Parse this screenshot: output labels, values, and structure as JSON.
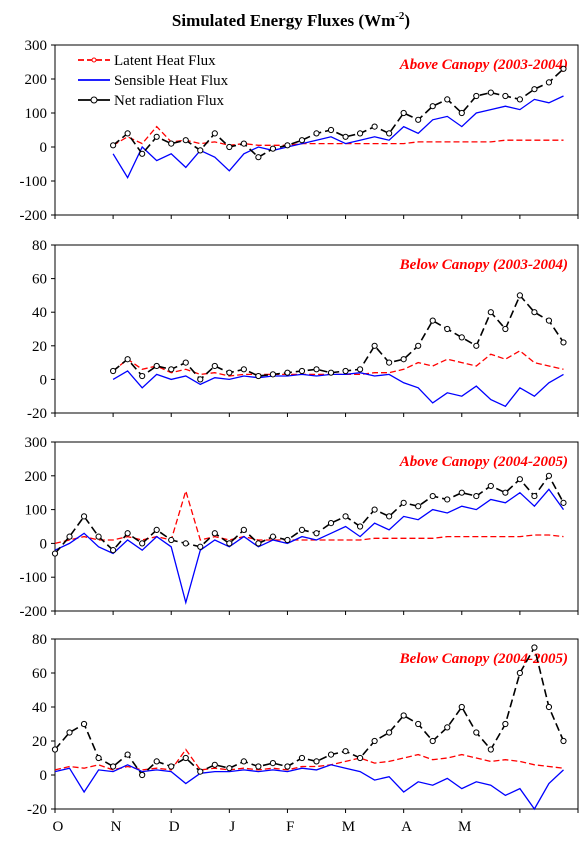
{
  "chart_data": {
    "title": "Simulated Energy Fluxes (Wm",
    "title_sup": "-2",
    "title_close": ")",
    "type": "line",
    "x_tick_labels": [
      "O",
      "N",
      "D",
      "J",
      "F",
      "M",
      "A",
      "M"
    ],
    "legend": {
      "placement": "top-left of first panel",
      "entries": [
        "Latent Heat Flux",
        "Sensible Heat Flux",
        "Net radiation Flux"
      ]
    },
    "series_colors": {
      "latent": "#ff0000",
      "sensible": "#0000ff",
      "net": "#000000"
    },
    "panels": [
      {
        "label": "Above Canopy (2003-2004)",
        "ylim": [
          -200,
          300
        ],
        "yticks": [
          -200,
          -100,
          0,
          100,
          200,
          300
        ],
        "series": [
          {
            "name": "Latent Heat Flux",
            "x": [
              1.0,
              1.25,
              1.5,
              1.75,
              2.0,
              2.25,
              2.5,
              2.75,
              3.0,
              3.25,
              3.5,
              3.75,
              4.0,
              4.25,
              4.5,
              4.75,
              5.0,
              5.25,
              5.5,
              5.75,
              6.0,
              6.25,
              6.5,
              6.75,
              7.0,
              7.25,
              7.5,
              7.75,
              8.0,
              8.25,
              8.5,
              8.75
            ],
            "y": [
              5,
              30,
              10,
              60,
              15,
              20,
              10,
              15,
              5,
              10,
              5,
              5,
              5,
              10,
              10,
              10,
              10,
              10,
              10,
              10,
              10,
              15,
              15,
              15,
              15,
              15,
              15,
              20,
              20,
              20,
              20,
              20
            ]
          },
          {
            "name": "Sensible Heat Flux",
            "x": [
              1.0,
              1.25,
              1.5,
              1.75,
              2.0,
              2.25,
              2.5,
              2.75,
              3.0,
              3.25,
              3.5,
              3.75,
              4.0,
              4.25,
              4.5,
              4.75,
              5.0,
              5.25,
              5.5,
              5.75,
              6.0,
              6.25,
              6.5,
              6.75,
              7.0,
              7.25,
              7.5,
              7.75,
              8.0,
              8.25,
              8.5,
              8.75
            ],
            "y": [
              -20,
              -90,
              0,
              -40,
              -20,
              -60,
              -10,
              -30,
              -70,
              -20,
              0,
              -10,
              0,
              10,
              20,
              30,
              10,
              20,
              30,
              20,
              60,
              40,
              80,
              90,
              60,
              100,
              110,
              120,
              110,
              140,
              130,
              150
            ]
          },
          {
            "name": "Net radiation Flux",
            "x": [
              1.0,
              1.25,
              1.5,
              1.75,
              2.0,
              2.25,
              2.5,
              2.75,
              3.0,
              3.25,
              3.5,
              3.75,
              4.0,
              4.25,
              4.5,
              4.75,
              5.0,
              5.25,
              5.5,
              5.75,
              6.0,
              6.25,
              6.5,
              6.75,
              7.0,
              7.25,
              7.5,
              7.75,
              8.0,
              8.25,
              8.5,
              8.75
            ],
            "y": [
              5,
              40,
              -20,
              30,
              10,
              20,
              -10,
              40,
              0,
              10,
              -30,
              -5,
              5,
              20,
              40,
              50,
              30,
              40,
              60,
              40,
              100,
              80,
              120,
              140,
              100,
              150,
              160,
              150,
              140,
              170,
              190,
              230
            ]
          }
        ]
      },
      {
        "label": "Below Canopy (2003-2004)",
        "ylim": [
          -20,
          80
        ],
        "yticks": [
          -20,
          0,
          20,
          40,
          60,
          80
        ],
        "series": [
          {
            "name": "Latent Heat Flux",
            "x": [
              1.0,
              1.25,
              1.5,
              1.75,
              2.0,
              2.25,
              2.5,
              2.75,
              3.0,
              3.25,
              3.5,
              3.75,
              4.0,
              4.25,
              4.5,
              4.75,
              5.0,
              5.25,
              5.5,
              5.75,
              6.0,
              6.25,
              6.5,
              6.75,
              7.0,
              7.25,
              7.5,
              7.75,
              8.0,
              8.25,
              8.5,
              8.75
            ],
            "y": [
              5,
              12,
              6,
              8,
              4,
              6,
              3,
              4,
              2,
              3,
              3,
              3,
              3,
              3,
              3,
              3,
              3,
              3,
              4,
              4,
              6,
              10,
              8,
              12,
              10,
              8,
              15,
              12,
              17,
              10,
              8,
              6
            ]
          },
          {
            "name": "Sensible Heat Flux",
            "x": [
              1.0,
              1.25,
              1.5,
              1.75,
              2.0,
              2.25,
              2.5,
              2.75,
              3.0,
              3.25,
              3.5,
              3.75,
              4.0,
              4.25,
              4.5,
              4.75,
              5.0,
              5.25,
              5.5,
              5.75,
              6.0,
              6.25,
              6.5,
              6.75,
              7.0,
              7.25,
              7.5,
              7.75,
              8.0,
              8.25,
              8.5,
              8.75
            ],
            "y": [
              0,
              5,
              -5,
              3,
              0,
              2,
              -3,
              1,
              0,
              2,
              1,
              2,
              2,
              3,
              2,
              3,
              3,
              4,
              2,
              3,
              -2,
              -5,
              -14,
              -8,
              -10,
              -4,
              -12,
              -16,
              -5,
              -10,
              -2,
              3
            ]
          },
          {
            "name": "Net radiation Flux",
            "x": [
              1.0,
              1.25,
              1.5,
              1.75,
              2.0,
              2.25,
              2.5,
              2.75,
              3.0,
              3.25,
              3.5,
              3.75,
              4.0,
              4.25,
              4.5,
              4.75,
              5.0,
              5.25,
              5.5,
              5.75,
              6.0,
              6.25,
              6.5,
              6.75,
              7.0,
              7.25,
              7.5,
              7.75,
              8.0,
              8.25,
              8.5,
              8.75
            ],
            "y": [
              5,
              12,
              2,
              8,
              6,
              10,
              0,
              8,
              4,
              6,
              2,
              3,
              4,
              5,
              6,
              4,
              5,
              6,
              20,
              10,
              12,
              20,
              35,
              30,
              25,
              20,
              40,
              30,
              50,
              40,
              35,
              22
            ]
          }
        ]
      },
      {
        "label": "Above Canopy (2004-2005)",
        "ylim": [
          -200,
          300
        ],
        "yticks": [
          -200,
          -100,
          0,
          100,
          200,
          300
        ],
        "series": [
          {
            "name": "Latent Heat Flux",
            "x": [
              0.0,
              0.25,
              0.5,
              0.75,
              1.0,
              1.25,
              1.5,
              1.75,
              2.0,
              2.25,
              2.5,
              2.75,
              3.0,
              3.25,
              3.5,
              3.75,
              4.0,
              4.25,
              4.5,
              4.75,
              5.0,
              5.25,
              5.5,
              5.75,
              6.0,
              6.25,
              6.5,
              6.75,
              7.0,
              7.25,
              7.5,
              7.75,
              8.0,
              8.25,
              8.5,
              8.75
            ],
            "y": [
              0,
              10,
              20,
              10,
              10,
              20,
              10,
              20,
              10,
              155,
              10,
              20,
              10,
              20,
              10,
              10,
              10,
              10,
              10,
              10,
              10,
              10,
              15,
              15,
              15,
              15,
              15,
              20,
              20,
              20,
              20,
              20,
              20,
              25,
              25,
              20
            ]
          },
          {
            "name": "Sensible Heat Flux",
            "x": [
              0.0,
              0.25,
              0.5,
              0.75,
              1.0,
              1.25,
              1.5,
              1.75,
              2.0,
              2.25,
              2.5,
              2.75,
              3.0,
              3.25,
              3.5,
              3.75,
              4.0,
              4.25,
              4.5,
              4.75,
              5.0,
              5.25,
              5.5,
              5.75,
              6.0,
              6.25,
              6.5,
              6.75,
              7.0,
              7.25,
              7.5,
              7.75,
              8.0,
              8.25,
              8.5,
              8.75
            ],
            "y": [
              -20,
              0,
              30,
              -10,
              -30,
              10,
              -20,
              20,
              -10,
              -175,
              -20,
              10,
              -10,
              20,
              -10,
              10,
              0,
              20,
              10,
              30,
              50,
              20,
              60,
              40,
              80,
              70,
              100,
              90,
              110,
              100,
              130,
              120,
              150,
              110,
              160,
              100
            ]
          },
          {
            "name": "Net radiation Flux",
            "x": [
              0.0,
              0.25,
              0.5,
              0.75,
              1.0,
              1.25,
              1.5,
              1.75,
              2.0,
              2.25,
              2.5,
              2.75,
              3.0,
              3.25,
              3.5,
              3.75,
              4.0,
              4.25,
              4.5,
              4.75,
              5.0,
              5.25,
              5.5,
              5.75,
              6.0,
              6.25,
              6.5,
              6.75,
              7.0,
              7.25,
              7.5,
              7.75,
              8.0,
              8.25,
              8.5,
              8.75
            ],
            "y": [
              -30,
              20,
              80,
              20,
              -20,
              30,
              0,
              40,
              10,
              0,
              -10,
              30,
              0,
              40,
              0,
              20,
              10,
              40,
              30,
              60,
              80,
              50,
              100,
              80,
              120,
              110,
              140,
              130,
              150,
              140,
              170,
              150,
              190,
              140,
              200,
              120
            ]
          }
        ]
      },
      {
        "label": "Below Canopy (2004-2005)",
        "ylim": [
          -20,
          80
        ],
        "yticks": [
          -20,
          0,
          20,
          40,
          60,
          80
        ],
        "series": [
          {
            "name": "Latent Heat Flux",
            "x": [
              0.0,
              0.25,
              0.5,
              0.75,
              1.0,
              1.25,
              1.5,
              1.75,
              2.0,
              2.25,
              2.5,
              2.75,
              3.0,
              3.25,
              3.5,
              3.75,
              4.0,
              4.25,
              4.5,
              4.75,
              5.0,
              5.25,
              5.5,
              5.75,
              6.0,
              6.25,
              6.5,
              6.75,
              7.0,
              7.25,
              7.5,
              7.75,
              8.0,
              8.25,
              8.5,
              8.75
            ],
            "y": [
              3,
              5,
              4,
              6,
              3,
              5,
              3,
              4,
              3,
              15,
              3,
              4,
              3,
              4,
              3,
              4,
              3,
              5,
              5,
              6,
              8,
              10,
              7,
              8,
              10,
              12,
              9,
              10,
              12,
              10,
              8,
              9,
              8,
              6,
              5,
              4
            ]
          },
          {
            "name": "Sensible Heat Flux",
            "x": [
              0.0,
              0.25,
              0.5,
              0.75,
              1.0,
              1.25,
              1.5,
              1.75,
              2.0,
              2.25,
              2.5,
              2.75,
              3.0,
              3.25,
              3.5,
              3.75,
              4.0,
              4.25,
              4.5,
              4.75,
              5.0,
              5.25,
              5.5,
              5.75,
              6.0,
              6.25,
              6.5,
              6.75,
              7.0,
              7.25,
              7.5,
              7.75,
              8.0,
              8.25,
              8.5,
              8.75
            ],
            "y": [
              2,
              4,
              -10,
              3,
              2,
              6,
              2,
              3,
              2,
              -5,
              1,
              2,
              2,
              3,
              2,
              3,
              2,
              4,
              3,
              6,
              4,
              2,
              -3,
              -1,
              -10,
              -4,
              -6,
              -2,
              -8,
              -4,
              -6,
              -12,
              -8,
              -20,
              -5,
              3
            ]
          },
          {
            "name": "Net radiation Flux",
            "x": [
              0.0,
              0.25,
              0.5,
              0.75,
              1.0,
              1.25,
              1.5,
              1.75,
              2.0,
              2.25,
              2.5,
              2.75,
              3.0,
              3.25,
              3.5,
              3.75,
              4.0,
              4.25,
              4.5,
              4.75,
              5.0,
              5.25,
              5.5,
              5.75,
              6.0,
              6.25,
              6.5,
              6.75,
              7.0,
              7.25,
              7.5,
              7.75,
              8.0,
              8.25,
              8.5,
              8.75
            ],
            "y": [
              15,
              25,
              30,
              10,
              5,
              12,
              0,
              8,
              5,
              10,
              2,
              6,
              4,
              8,
              5,
              7,
              5,
              10,
              8,
              12,
              14,
              10,
              20,
              25,
              35,
              30,
              20,
              28,
              40,
              25,
              15,
              30,
              60,
              75,
              40,
              20
            ]
          }
        ]
      }
    ]
  }
}
